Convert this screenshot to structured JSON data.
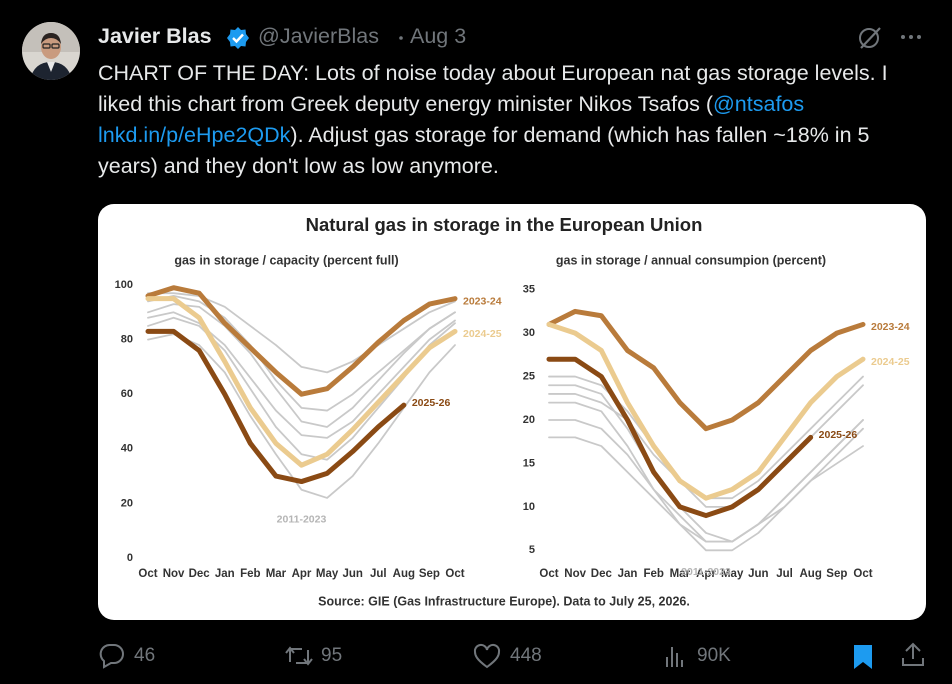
{
  "author": {
    "name": "Javier Blas",
    "handle": "@JavierBlas",
    "date": "Aug 3"
  },
  "tweet": {
    "text_before": "CHART OF THE DAY: Lots of noise today about European nat gas storage levels. I liked this chart from Greek deputy energy minister Nikos Tsafos (",
    "mention": "@ntsafos",
    "link": "lnkd.in/p/eHpe2QDk",
    "text_after": "). Adjust gas storage for demand (which has fallen ~18% in 5 years) and they don't low as low anymore."
  },
  "figure": {
    "title": "Natural gas in storage in the European Union",
    "source": "Source: GIE (Gas Infrastructure Europe). Data to July 25, 2026."
  },
  "chart_data": [
    {
      "type": "line",
      "title": "gas in storage / capacity (percent full)",
      "categories": [
        "Oct",
        "Nov",
        "Dec",
        "Jan",
        "Feb",
        "Mar",
        "Apr",
        "May",
        "Jun",
        "Jul",
        "Aug",
        "Sep",
        "Oct"
      ],
      "ylim": [
        0,
        100
      ],
      "yticks": [
        0,
        20,
        40,
        60,
        80,
        100
      ],
      "series": [
        {
          "name": "2011-2023",
          "color": "#c9c9c9",
          "lines": [
            [
              90,
              93,
              92,
              85,
              75,
              62,
              50,
              48,
              55,
              65,
              75,
              84,
              90
            ],
            [
              85,
              88,
              85,
              76,
              62,
              48,
              38,
              36,
              44,
              55,
              66,
              78,
              86
            ],
            [
              94,
              96,
              94,
              88,
              78,
              65,
              55,
              54,
              60,
              68,
              76,
              84,
              90
            ],
            [
              80,
              82,
              78,
              68,
              52,
              38,
              25,
              22,
              30,
              42,
              55,
              68,
              78
            ],
            [
              88,
              90,
              86,
              78,
              66,
              54,
              45,
              44,
              50,
              60,
              70,
              80,
              87
            ],
            [
              97,
              97,
              96,
              92,
              85,
              78,
              70,
              68,
              72,
              78,
              84,
              90,
              94
            ]
          ]
        },
        {
          "name": "2023-24",
          "color": "#b97b3b",
          "values": [
            96,
            99,
            97,
            86,
            77,
            68,
            60,
            62,
            70,
            79,
            87,
            93,
            95
          ]
        },
        {
          "name": "2024-25",
          "color": "#ebcb8f",
          "values": [
            95,
            95,
            88,
            72,
            55,
            42,
            34,
            38,
            47,
            57,
            67,
            77,
            83
          ]
        },
        {
          "name": "2025-26",
          "color": "#8a4a14",
          "values": [
            83,
            83,
            76,
            60,
            42,
            30,
            28,
            31,
            39,
            48,
            56,
            null,
            null
          ]
        }
      ]
    },
    {
      "type": "line",
      "title": "gas in storage / annual consumpion (percent)",
      "categories": [
        "Oct",
        "Nov",
        "Dec",
        "Jan",
        "Feb",
        "Mar",
        "Apr",
        "May",
        "Jun",
        "Jul",
        "Aug",
        "Sep",
        "Oct"
      ],
      "ylim": [
        4,
        36
      ],
      "yticks": [
        5,
        10,
        15,
        20,
        25,
        30,
        35
      ],
      "series": [
        {
          "name": "2011-2023",
          "color": "#c9c9c9",
          "lines": [
            [
              24,
              24,
              23,
              19,
              14,
              10,
              7,
              6,
              8,
              11,
              14,
              17,
              20
            ],
            [
              22,
              22,
              21,
              17,
              12,
              8,
              5,
              5,
              7,
              10,
              13,
              16,
              19
            ],
            [
              25,
              25,
              24,
              21,
              17,
              13,
              10,
              10,
              12,
              15,
              18,
              21,
              24
            ],
            [
              20,
              20,
              19,
              16,
              12,
              9,
              6,
              6,
              8,
              11,
              14,
              17,
              20
            ],
            [
              23,
              23,
              22,
              20,
              16,
              13,
              11,
              11,
              13,
              16,
              19,
              22,
              25
            ],
            [
              18,
              18,
              17,
              14,
              11,
              8,
              6,
              6,
              8,
              10,
              13,
              15,
              17
            ]
          ]
        },
        {
          "name": "2023-24",
          "color": "#b97b3b",
          "values": [
            31,
            32.5,
            32,
            28,
            26,
            22,
            19,
            20,
            22,
            25,
            28,
            30,
            31
          ]
        },
        {
          "name": "2024-25",
          "color": "#ebcb8f",
          "values": [
            31,
            30,
            28,
            22,
            17,
            13,
            11,
            12,
            14,
            18,
            22,
            25,
            27
          ]
        },
        {
          "name": "2025-26",
          "color": "#8a4a14",
          "values": [
            27,
            27,
            25,
            20,
            14,
            10,
            9,
            10,
            12,
            15,
            18,
            null,
            null
          ]
        }
      ]
    }
  ],
  "stats": {
    "replies": "46",
    "reposts": "95",
    "likes": "448",
    "views": "90K"
  }
}
